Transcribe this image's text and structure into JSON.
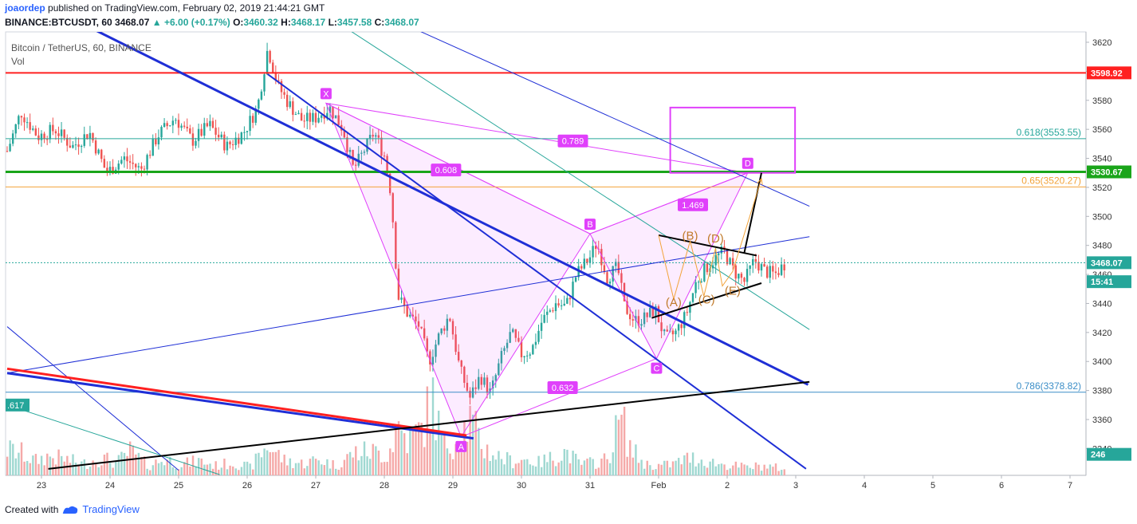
{
  "header": {
    "author": "joaordep",
    "published": "published on TradingView.com, February 02, 2019 21:44:21 GMT",
    "symbol": "BINANCE:BTCUSDT, 60",
    "last": "3468.07",
    "change": "+6.00 (+0.17%)",
    "o_label": "O:",
    "o": "3460.32",
    "h_label": "H:",
    "h": "3468.17",
    "l_label": "L:",
    "l": "3457.58",
    "c_label": "C:",
    "c": "3468.07"
  },
  "legend": {
    "title": "Bitcoin / TetherUS, 60, BINANCE",
    "vol": "Vol"
  },
  "footer": {
    "created": "Created with",
    "brand": "TradingView"
  },
  "colors": {
    "up": "#26a69a",
    "down": "#ef5350",
    "pattern": "#e040fb",
    "abcde": "#c07a2a",
    "trend": "#1f2fd6",
    "support_green": "#1aa51a",
    "resistance_red": "#ff2020",
    "fib_teal": "#26a69a",
    "fib_gold": "#f2a33a",
    "fib_786": "#3c8ec7"
  },
  "chart_data": {
    "type": "candlestick",
    "title": "Bitcoin / TetherUS, 60, BINANCE",
    "ylim": [
      3328,
      3628
    ],
    "yticks": [
      3340,
      3360,
      3380,
      3400,
      3420,
      3440,
      3460,
      3480,
      3500,
      3520,
      3540,
      3560,
      3580,
      3600,
      3620
    ],
    "x_tick_labels": [
      "23",
      "24",
      "25",
      "26",
      "27",
      "28",
      "29",
      "30",
      "31",
      "Feb",
      "2",
      "3",
      "4",
      "5",
      "6",
      "7"
    ],
    "price_anchors": [
      [
        22.5,
        3545
      ],
      [
        22.7,
        3572
      ],
      [
        22.95,
        3555
      ],
      [
        23.2,
        3560
      ],
      [
        23.45,
        3548
      ],
      [
        23.7,
        3558
      ],
      [
        23.95,
        3530
      ],
      [
        24.2,
        3540
      ],
      [
        24.45,
        3532
      ],
      [
        24.7,
        3556
      ],
      [
        24.95,
        3568
      ],
      [
        25.2,
        3552
      ],
      [
        25.45,
        3563
      ],
      [
        25.7,
        3548
      ],
      [
        25.95,
        3558
      ],
      [
        26.15,
        3575
      ],
      [
        26.3,
        3616
      ],
      [
        26.45,
        3590
      ],
      [
        26.6,
        3578
      ],
      [
        26.8,
        3566
      ],
      [
        27.0,
        3568
      ],
      [
        27.2,
        3575
      ],
      [
        27.4,
        3560
      ],
      [
        27.55,
        3532
      ],
      [
        27.7,
        3545
      ],
      [
        27.85,
        3558
      ],
      [
        28.0,
        3542
      ],
      [
        28.1,
        3515
      ],
      [
        28.2,
        3445
      ],
      [
        28.35,
        3432
      ],
      [
        28.5,
        3425
      ],
      [
        28.65,
        3400
      ],
      [
        28.8,
        3418
      ],
      [
        28.95,
        3432
      ],
      [
        29.1,
        3395
      ],
      [
        29.25,
        3375
      ],
      [
        29.4,
        3390
      ],
      [
        29.55,
        3378
      ],
      [
        29.7,
        3402
      ],
      [
        29.85,
        3420
      ],
      [
        30.0,
        3405
      ],
      [
        30.15,
        3408
      ],
      [
        30.3,
        3428
      ],
      [
        30.5,
        3440
      ],
      [
        30.65,
        3438
      ],
      [
        30.8,
        3460
      ],
      [
        31.0,
        3472
      ],
      [
        31.1,
        3482
      ],
      [
        31.25,
        3458
      ],
      [
        31.4,
        3465
      ],
      [
        31.5,
        3438
      ],
      [
        31.65,
        3428
      ],
      [
        31.8,
        3430
      ],
      [
        31.95,
        3436
      ],
      [
        32.1,
        3415
      ],
      [
        32.25,
        3420
      ],
      [
        32.4,
        3432
      ],
      [
        32.55,
        3455
      ],
      [
        32.7,
        3465
      ],
      [
        32.85,
        3472
      ],
      [
        32.95,
        3476
      ],
      [
        33.1,
        3462
      ],
      [
        33.25,
        3455
      ],
      [
        33.4,
        3470
      ],
      [
        33.55,
        3462
      ],
      [
        33.7,
        3460
      ],
      [
        33.85,
        3468
      ]
    ],
    "volume_ylim": [
      0,
      100
    ],
    "volume_points": [
      [
        22.5,
        32
      ],
      [
        22.7,
        28
      ],
      [
        22.9,
        18
      ],
      [
        23.1,
        24
      ],
      [
        23.35,
        20
      ],
      [
        23.6,
        14
      ],
      [
        23.85,
        22
      ],
      [
        24.1,
        16
      ],
      [
        24.3,
        30
      ],
      [
        24.55,
        12
      ],
      [
        24.8,
        20
      ],
      [
        25.05,
        14
      ],
      [
        25.3,
        18
      ],
      [
        25.55,
        12
      ],
      [
        25.8,
        16
      ],
      [
        26.05,
        10
      ],
      [
        26.3,
        38
      ],
      [
        26.55,
        18
      ],
      [
        26.8,
        15
      ],
      [
        27.05,
        20
      ],
      [
        27.3,
        12
      ],
      [
        27.55,
        28
      ],
      [
        27.8,
        30
      ],
      [
        28.05,
        26
      ],
      [
        28.2,
        62
      ],
      [
        28.35,
        44
      ],
      [
        28.55,
        58
      ],
      [
        28.7,
        96
      ],
      [
        28.85,
        38
      ],
      [
        29.05,
        44
      ],
      [
        29.25,
        68
      ],
      [
        29.45,
        34
      ],
      [
        29.65,
        24
      ],
      [
        29.85,
        18
      ],
      [
        30.05,
        20
      ],
      [
        30.25,
        16
      ],
      [
        30.45,
        22
      ],
      [
        30.65,
        30
      ],
      [
        30.85,
        14
      ],
      [
        31.05,
        16
      ],
      [
        31.25,
        20
      ],
      [
        31.45,
        72
      ],
      [
        31.6,
        32
      ],
      [
        31.8,
        14
      ],
      [
        32.0,
        12
      ],
      [
        32.2,
        14
      ],
      [
        32.45,
        22
      ],
      [
        32.7,
        18
      ],
      [
        32.9,
        14
      ],
      [
        33.1,
        12
      ],
      [
        33.3,
        10
      ],
      [
        33.5,
        12
      ],
      [
        33.7,
        10
      ],
      [
        33.85,
        8
      ]
    ],
    "price_scale_labels": [
      {
        "text": "3598.92",
        "price": 3598.92,
        "color": "#ff2020"
      },
      {
        "text": "3530.67",
        "price": 3530.67,
        "color": "#1aa51a"
      },
      {
        "text": "3468.07",
        "price": 3468.07,
        "color": "#26a69a"
      },
      {
        "text": "15:41",
        "price": 3455,
        "color": "#26a69a"
      },
      {
        "text": "246",
        "price": 3336,
        "color": "#26a69a"
      }
    ],
    "horizontal_lines": [
      {
        "price": 3598.92,
        "color": "#ff2020",
        "width": 2
      },
      {
        "price": 3530.67,
        "color": "#1aa51a",
        "width": 3
      },
      {
        "price": 3553.55,
        "color": "#26a69a",
        "width": 1,
        "label": "0.618(3553.55)"
      },
      {
        "price": 3520.27,
        "color": "#f2a33a",
        "width": 1,
        "label": "0.65(3520.27)"
      },
      {
        "price": 3378.82,
        "color": "#3c8ec7",
        "width": 1,
        "label": "0.786(3378.82)"
      },
      {
        "price": 3468.07,
        "color": "#26a69a",
        "width": 1,
        "dash": true
      }
    ],
    "pattern_points": {
      "X": [
        27.15,
        3578
      ],
      "A": [
        29.12,
        3348
      ],
      "B": [
        31.0,
        3488
      ],
      "C": [
        31.97,
        3402
      ],
      "D": [
        33.3,
        3530
      ]
    },
    "pattern_ratios": [
      {
        "text": "0.789",
        "at": [
          30.75,
          3552
        ]
      },
      {
        "text": "0.608",
        "at": [
          28.9,
          3532
        ]
      },
      {
        "text": "1.469",
        "at": [
          32.5,
          3508
        ]
      },
      {
        "text": "0.632",
        "at": [
          30.6,
          3382
        ]
      }
    ],
    "pattern_labels": {
      "left_edge": ".617"
    },
    "target_box": {
      "x1": 32.17,
      "x2": 33.99,
      "y1": 3575,
      "y2": 3530
    },
    "triangle_labels": [
      {
        "text": "(A)",
        "at": [
          32.22,
          3438
        ]
      },
      {
        "text": "(B)",
        "at": [
          32.46,
          3484
        ]
      },
      {
        "text": "(C)",
        "at": [
          32.7,
          3440
        ]
      },
      {
        "text": "(D)",
        "at": [
          32.83,
          3482
        ]
      },
      {
        "text": "(E)",
        "at": [
          33.08,
          3446
        ]
      }
    ],
    "abcde_points": [
      [
        32.0,
        3487
      ],
      [
        32.22,
        3443
      ],
      [
        32.46,
        3483
      ],
      [
        32.66,
        3445
      ],
      [
        32.83,
        3478
      ],
      [
        32.93,
        3452
      ],
      [
        33.08,
        3462
      ],
      [
        33.5,
        3526
      ]
    ],
    "trend_lines": [
      {
        "p1": [
          22.5,
          3392
        ],
        "p2": [
          29.3,
          3347
        ],
        "color": "#1f2fd6",
        "width": 3
      },
      {
        "p1": [
          23.8,
          3628
        ],
        "p2": [
          34.18,
          3384
        ],
        "color": "#1f2fd6",
        "width": 3
      },
      {
        "p1": [
          26.3,
          3598
        ],
        "p2": [
          34.15,
          3326
        ],
        "color": "#1f2fd6",
        "width": 2
      },
      {
        "p1": [
          22.5,
          3392
        ],
        "p2": [
          34.2,
          3486
        ],
        "color": "#1f2fd6",
        "width": 1
      },
      {
        "p1": [
          28.5,
          3628
        ],
        "p2": [
          34.2,
          3507
        ],
        "color": "#1f2fd6",
        "width": 1
      },
      {
        "p1": [
          22.5,
          3424
        ],
        "p2": [
          25.0,
          3325
        ],
        "color": "#1f2fd6",
        "width": 1
      },
      {
        "p1": [
          22.5,
          3395
        ],
        "p2": [
          29.2,
          3349
        ],
        "color": "#ff2020",
        "width": 3
      },
      {
        "p1": [
          27.5,
          3628
        ],
        "p2": [
          34.2,
          3422
        ],
        "color": "#26a69a",
        "width": 1
      },
      {
        "p1": [
          22.5,
          3370
        ],
        "p2": [
          25.6,
          3322
        ],
        "color": "#26a69a",
        "width": 1
      },
      {
        "p1": [
          23.1,
          3326
        ],
        "p2": [
          34.2,
          3386
        ],
        "color": "#000000",
        "width": 2
      },
      {
        "p1": [
          31.9,
          3430
        ],
        "p2": [
          33.5,
          3454
        ],
        "color": "#000000",
        "width": 2
      },
      {
        "p1": [
          32.0,
          3487
        ],
        "p2": [
          33.43,
          3473
        ],
        "color": "#000000",
        "width": 2
      },
      {
        "p1": [
          33.25,
          3475
        ],
        "p2": [
          33.5,
          3530
        ],
        "color": "#000000",
        "width": 2
      }
    ]
  }
}
